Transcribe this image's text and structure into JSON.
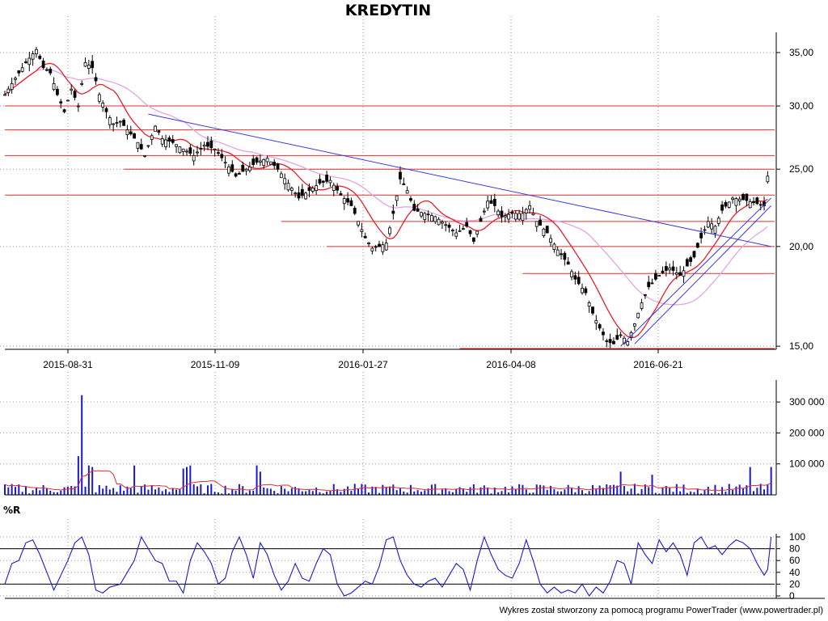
{
  "title": "KREDYTIN",
  "footer": "Wykres został stworzony za pomocą programu PowerTrader (www.powertrader.pl)",
  "colors": {
    "background": "#ffffff",
    "candle": "#000000",
    "ma_fast": "#e8202a",
    "ma_slow": "#e2a6e2",
    "trendline": "#3a3ae0",
    "support_resistance": "#e03030",
    "volume_bar": "#1a1acc",
    "volume_ma": "#e03030",
    "williams_r": "#1a1acc",
    "grid": "#9a9a9a"
  },
  "chart_data": [
    {
      "id": "price",
      "type": "candlestick",
      "title": "KREDYTIN",
      "x_tick_labels": [
        "2015-08-31",
        "2015-11-09",
        "2016-01-27",
        "2016-04-08",
        "2016-06-21"
      ],
      "y_tick_labels": [
        "15,00",
        "20,00",
        "25,00",
        "30,00",
        "35,00"
      ],
      "y_ticks": [
        15,
        20,
        25,
        30,
        35
      ],
      "ylim": [
        14.9,
        36.5
      ],
      "y_scale": "log",
      "grid": true,
      "close_path": [
        [
          0,
          31.0
        ],
        [
          3,
          32.5
        ],
        [
          6,
          34.0
        ],
        [
          9,
          35.3
        ],
        [
          11,
          33.5
        ],
        [
          13,
          33.0
        ],
        [
          15,
          31.0
        ],
        [
          17,
          29.5
        ],
        [
          19,
          31.5
        ],
        [
          21,
          30.0
        ],
        [
          23,
          34.0
        ],
        [
          25,
          33.5
        ],
        [
          27,
          31.0
        ],
        [
          29,
          29.5
        ],
        [
          31,
          28.5
        ],
        [
          33,
          28.7
        ],
        [
          35,
          28.0
        ],
        [
          38,
          27.0
        ],
        [
          40,
          26.0
        ],
        [
          43,
          28.3
        ],
        [
          45,
          27.3
        ],
        [
          48,
          27.0
        ],
        [
          51,
          26.5
        ],
        [
          54,
          26.0
        ],
        [
          57,
          26.8
        ],
        [
          60,
          26.5
        ],
        [
          63,
          25.5
        ],
        [
          66,
          24.5
        ],
        [
          69,
          25.0
        ],
        [
          72,
          25.5
        ],
        [
          75,
          25.8
        ],
        [
          78,
          25.0
        ],
        [
          81,
          24.0
        ],
        [
          84,
          23.0
        ],
        [
          87,
          23.5
        ],
        [
          90,
          24.0
        ],
        [
          93,
          24.2
        ],
        [
          96,
          23.2
        ],
        [
          99,
          22.5
        ],
        [
          101,
          21.5
        ],
        [
          103,
          20.5
        ],
        [
          105,
          19.9
        ],
        [
          107,
          20.0
        ],
        [
          109,
          20.2
        ],
        [
          111,
          22.0
        ],
        [
          113,
          24.3
        ],
        [
          115,
          23.5
        ],
        [
          117,
          22.2
        ],
        [
          120,
          22.0
        ],
        [
          123,
          21.8
        ],
        [
          126,
          21.3
        ],
        [
          129,
          20.8
        ],
        [
          132,
          21.2
        ],
        [
          134,
          20.3
        ],
        [
          136,
          21.5
        ],
        [
          138,
          22.8
        ],
        [
          140,
          22.5
        ],
        [
          142,
          21.8
        ],
        [
          145,
          22.0
        ],
        [
          148,
          22.0
        ],
        [
          150,
          22.5
        ],
        [
          152,
          21.5
        ],
        [
          155,
          20.8
        ],
        [
          158,
          19.8
        ],
        [
          161,
          19.0
        ],
        [
          163,
          18.2
        ],
        [
          166,
          17.5
        ],
        [
          168,
          16.5
        ],
        [
          170,
          15.8
        ],
        [
          172,
          15.2
        ],
        [
          174,
          15.1
        ],
        [
          176,
          15.5
        ],
        [
          178,
          15.2
        ],
        [
          180,
          16.0
        ],
        [
          182,
          17.0
        ],
        [
          184,
          17.8
        ],
        [
          187,
          18.4
        ],
        [
          190,
          18.8
        ],
        [
          193,
          18.4
        ],
        [
          195,
          18.9
        ],
        [
          197,
          19.4
        ],
        [
          199,
          20.5
        ],
        [
          201,
          21.5
        ],
        [
          203,
          21.2
        ],
        [
          205,
          22.2
        ],
        [
          208,
          23.0
        ],
        [
          211,
          22.9
        ],
        [
          214,
          22.7
        ],
        [
          217,
          22.5
        ],
        [
          218,
          24.5
        ]
      ],
      "horizontal_levels": [
        {
          "value": 30.0,
          "from_day": 0,
          "to_day": 220
        },
        {
          "value": 28.0,
          "from_day": 0,
          "to_day": 220
        },
        {
          "value": 26.0,
          "from_day": 0,
          "to_day": 220
        },
        {
          "value": 25.0,
          "from_day": 34,
          "to_day": 220
        },
        {
          "value": 23.2,
          "from_day": 0,
          "to_day": 220
        },
        {
          "value": 21.5,
          "from_day": 79,
          "to_day": 220
        },
        {
          "value": 20.0,
          "from_day": 92,
          "to_day": 220
        },
        {
          "value": 18.5,
          "from_day": 148,
          "to_day": 220
        },
        {
          "value": 14.9,
          "from_day": 130,
          "to_day": 220
        }
      ],
      "trendlines": [
        {
          "from": [
            41,
            29.3
          ],
          "to": [
            219,
            20.0
          ]
        },
        {
          "from": [
            180,
            15.1
          ],
          "to": [
            219,
            22.5
          ]
        },
        {
          "from": [
            176,
            15.0
          ],
          "to": [
            219,
            23.0
          ]
        }
      ]
    },
    {
      "id": "volume",
      "type": "bar",
      "y_tick_labels": [
        "100 000",
        "200 000",
        "300 000"
      ],
      "y_ticks": [
        100000,
        200000,
        300000
      ],
      "ylim": [
        0,
        350000
      ],
      "grid": true,
      "spikes": [
        [
          21,
          125000
        ],
        [
          22,
          322000
        ],
        [
          24,
          95000
        ],
        [
          25,
          90000
        ],
        [
          37,
          95000
        ],
        [
          51,
          85000
        ],
        [
          52,
          90000
        ],
        [
          53,
          95000
        ],
        [
          72,
          95000
        ],
        [
          73,
          75000
        ],
        [
          176,
          75000
        ],
        [
          185,
          65000
        ],
        [
          213,
          90000
        ],
        [
          219,
          90000
        ]
      ],
      "baseline": 20000
    },
    {
      "id": "williams_r",
      "type": "line",
      "label": "%R",
      "y_tick_labels": [
        "100",
        "80",
        "60",
        "40",
        "20",
        "0"
      ],
      "y_ticks": [
        100,
        80,
        60,
        40,
        20,
        0
      ],
      "ylim": [
        0,
        100
      ],
      "levels": [
        80,
        20
      ],
      "grid": true,
      "points": [
        [
          0,
          20
        ],
        [
          2,
          55
        ],
        [
          4,
          60
        ],
        [
          6,
          90
        ],
        [
          8,
          95
        ],
        [
          10,
          70
        ],
        [
          12,
          40
        ],
        [
          14,
          10
        ],
        [
          16,
          35
        ],
        [
          18,
          60
        ],
        [
          20,
          90
        ],
        [
          22,
          100
        ],
        [
          24,
          70
        ],
        [
          26,
          10
        ],
        [
          28,
          5
        ],
        [
          30,
          15
        ],
        [
          33,
          20
        ],
        [
          35,
          40
        ],
        [
          37,
          60
        ],
        [
          39,
          100
        ],
        [
          41,
          80
        ],
        [
          43,
          60
        ],
        [
          45,
          55
        ],
        [
          47,
          25
        ],
        [
          49,
          25
        ],
        [
          51,
          5
        ],
        [
          53,
          60
        ],
        [
          55,
          90
        ],
        [
          57,
          75
        ],
        [
          59,
          55
        ],
        [
          61,
          20
        ],
        [
          63,
          30
        ],
        [
          65,
          75
        ],
        [
          67,
          100
        ],
        [
          69,
          70
        ],
        [
          71,
          30
        ],
        [
          73,
          90
        ],
        [
          75,
          70
        ],
        [
          77,
          35
        ],
        [
          79,
          10
        ],
        [
          81,
          25
        ],
        [
          83,
          55
        ],
        [
          85,
          30
        ],
        [
          87,
          25
        ],
        [
          89,
          55
        ],
        [
          91,
          80
        ],
        [
          93,
          70
        ],
        [
          95,
          20
        ],
        [
          97,
          0
        ],
        [
          99,
          5
        ],
        [
          101,
          15
        ],
        [
          103,
          25
        ],
        [
          105,
          20
        ],
        [
          107,
          50
        ],
        [
          109,
          95
        ],
        [
          111,
          100
        ],
        [
          113,
          60
        ],
        [
          115,
          35
        ],
        [
          117,
          20
        ],
        [
          119,
          15
        ],
        [
          121,
          25
        ],
        [
          123,
          30
        ],
        [
          125,
          15
        ],
        [
          127,
          35
        ],
        [
          129,
          55
        ],
        [
          131,
          45
        ],
        [
          133,
          10
        ],
        [
          135,
          60
        ],
        [
          137,
          100
        ],
        [
          139,
          70
        ],
        [
          141,
          45
        ],
        [
          143,
          35
        ],
        [
          145,
          30
        ],
        [
          147,
          55
        ],
        [
          149,
          95
        ],
        [
          151,
          60
        ],
        [
          153,
          20
        ],
        [
          155,
          5
        ],
        [
          157,
          15
        ],
        [
          159,
          5
        ],
        [
          161,
          10
        ],
        [
          163,
          5
        ],
        [
          165,
          20
        ],
        [
          167,
          0
        ],
        [
          169,
          15
        ],
        [
          171,
          5
        ],
        [
          173,
          25
        ],
        [
          175,
          60
        ],
        [
          177,
          55
        ],
        [
          179,
          20
        ],
        [
          181,
          90
        ],
        [
          183,
          70
        ],
        [
          185,
          55
        ],
        [
          187,
          95
        ],
        [
          189,
          75
        ],
        [
          191,
          90
        ],
        [
          193,
          70
        ],
        [
          195,
          35
        ],
        [
          197,
          90
        ],
        [
          199,
          100
        ],
        [
          201,
          80
        ],
        [
          203,
          85
        ],
        [
          205,
          70
        ],
        [
          207,
          85
        ],
        [
          209,
          95
        ],
        [
          211,
          90
        ],
        [
          213,
          80
        ],
        [
          215,
          55
        ],
        [
          217,
          35
        ],
        [
          218,
          45
        ],
        [
          219,
          100
        ]
      ]
    }
  ]
}
